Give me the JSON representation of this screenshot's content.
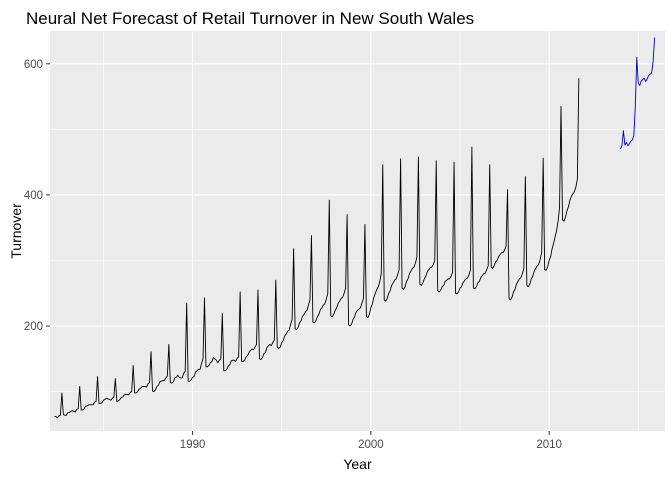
{
  "chart_data": {
    "type": "line",
    "title": "Neural Net Forecast of Retail Turnover in New South Wales",
    "xlabel": "Year",
    "ylabel": "Turnover",
    "xlim": [
      1982.0,
      2016.5
    ],
    "ylim": [
      40,
      650
    ],
    "x_ticks": [
      1990,
      2000,
      2010
    ],
    "x_minor_ticks": [
      1985,
      1995,
      2005,
      2015
    ],
    "y_ticks": [
      200,
      400,
      600
    ],
    "y_minor_ticks": [
      100,
      300,
      500
    ],
    "grid": true,
    "legend": "none",
    "colors": {
      "panel": "#ebebeb",
      "grid": "#ffffff",
      "history": "#000000",
      "forecast": "#0000cc"
    },
    "series": [
      {
        "role": "history",
        "start_year": 1982,
        "start_month": 4,
        "values": [
          62,
          62,
          60,
          63,
          64,
          98,
          65,
          64,
          64,
          68,
          68,
          70,
          71,
          70,
          69,
          73,
          74,
          108,
          72,
          72,
          74,
          78,
          78,
          80,
          80,
          80,
          80,
          84,
          85,
          123,
          82,
          82,
          83,
          87,
          88,
          90,
          89,
          88,
          87,
          90,
          92,
          120,
          85,
          86,
          88,
          91,
          92,
          95,
          96,
          96,
          95,
          99,
          100,
          140,
          98,
          98,
          100,
          104,
          105,
          108,
          108,
          108,
          107,
          112,
          114,
          161,
          101,
          100,
          103,
          108,
          110,
          115,
          116,
          117,
          117,
          121,
          124,
          172,
          114,
          113,
          115,
          121,
          122,
          125,
          122,
          121,
          121,
          128,
          131,
          235,
          116,
          116,
          118,
          122,
          123,
          130,
          132,
          134,
          134,
          143,
          150,
          243,
          138,
          138,
          140,
          144,
          146,
          152,
          150,
          148,
          144,
          148,
          150,
          219,
          132,
          132,
          134,
          139,
          141,
          147,
          148,
          148,
          146,
          151,
          153,
          252,
          146,
          146,
          148,
          153,
          155,
          160,
          163,
          165,
          164,
          168,
          172,
          255,
          150,
          149,
          152,
          158,
          160,
          167,
          170,
          172,
          170,
          175,
          179,
          270,
          168,
          166,
          168,
          175,
          178,
          185,
          188,
          192,
          194,
          203,
          210,
          318,
          196,
          195,
          198,
          205,
          208,
          215,
          218,
          222,
          224,
          232,
          240,
          338,
          206,
          205,
          208,
          214,
          218,
          225,
          228,
          232,
          234,
          241,
          250,
          392,
          216,
          214,
          218,
          224,
          228,
          235,
          238,
          242,
          244,
          250,
          258,
          370,
          202,
          200,
          203,
          210,
          214,
          221,
          224,
          226,
          228,
          235,
          242,
          355,
          215,
          213,
          218,
          228,
          234,
          244,
          250,
          256,
          260,
          268,
          280,
          446,
          240,
          238,
          242,
          250,
          254,
          262,
          266,
          270,
          272,
          278,
          286,
          455,
          258,
          256,
          260,
          268,
          272,
          280,
          284,
          288,
          290,
          296,
          305,
          458,
          264,
          262,
          266,
          272,
          276,
          283,
          286,
          289,
          290,
          294,
          300,
          452,
          254,
          252,
          255,
          260,
          262,
          268,
          270,
          272,
          272,
          276,
          282,
          450,
          250,
          249,
          252,
          258,
          260,
          266,
          269,
          272,
          273,
          278,
          285,
          473,
          258,
          257,
          260,
          266,
          268,
          274,
          277,
          280,
          281,
          286,
          292,
          446,
          290,
          288,
          292,
          298,
          300,
          306,
          309,
          312,
          312,
          316,
          322,
          408,
          242,
          240,
          244,
          252,
          256,
          264,
          268,
          272,
          274,
          280,
          288,
          428,
          262,
          260,
          264,
          272,
          276,
          284,
          288,
          292,
          294,
          302,
          312,
          456,
          286,
          285,
          290,
          300,
          306,
          318,
          326,
          336,
          345,
          360,
          380,
          535,
          362,
          360,
          366,
          376,
          382,
          392,
          398,
          402,
          405,
          412,
          424,
          578
        ]
      },
      {
        "role": "forecast",
        "start_year": 2014,
        "start_month": 1,
        "values": [
          470,
          475,
          498,
          476,
          480,
          475,
          478,
          482,
          484,
          490,
          535,
          610,
          570,
          567,
          574,
          576,
          578,
          573,
          577,
          582,
          584,
          586,
          604,
          640
        ]
      }
    ]
  }
}
